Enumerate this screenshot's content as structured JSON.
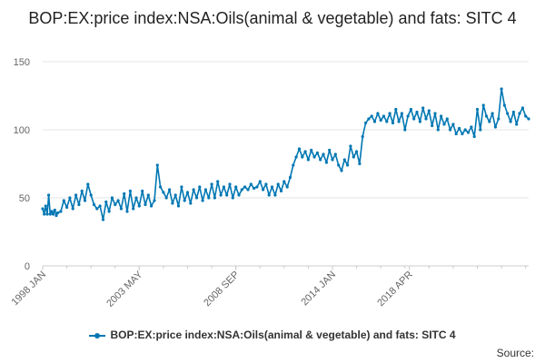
{
  "chart_data": {
    "type": "line",
    "title": "BOP:EX:price index:NSA:Oils(animal & vegetable) and fats: SITC 4",
    "xlabel": "",
    "ylabel": "",
    "ylim": [
      0,
      150
    ],
    "yticks": [
      0,
      50,
      100,
      150
    ],
    "xticks": [
      {
        "label": "1998 JAN",
        "index": 0
      },
      {
        "label": "2003 MAY",
        "index": 64
      },
      {
        "label": "2008 SEP",
        "index": 128
      },
      {
        "label": "2014 JAN",
        "index": 192
      },
      {
        "label": "2018 APR",
        "index": 243
      }
    ],
    "grid": true,
    "legend_position": "bottom",
    "color": "#0077b3",
    "series": [
      {
        "name": "BOP:EX:price index:NSA:Oils(animal & vegetable) and fats: SITC 4",
        "anchors": [
          [
            0,
            42
          ],
          [
            1,
            38
          ],
          [
            2,
            44
          ],
          [
            3,
            38
          ],
          [
            4,
            52
          ],
          [
            5,
            38
          ],
          [
            6,
            40
          ],
          [
            7,
            38
          ],
          [
            8,
            41
          ],
          [
            9,
            37
          ],
          [
            10,
            39
          ],
          [
            12,
            40
          ],
          [
            14,
            48
          ],
          [
            16,
            43
          ],
          [
            18,
            50
          ],
          [
            20,
            42
          ],
          [
            22,
            52
          ],
          [
            24,
            45
          ],
          [
            26,
            55
          ],
          [
            28,
            48
          ],
          [
            30,
            60
          ],
          [
            32,
            52
          ],
          [
            34,
            45
          ],
          [
            36,
            42
          ],
          [
            38,
            44
          ],
          [
            40,
            34
          ],
          [
            42,
            47
          ],
          [
            44,
            40
          ],
          [
            46,
            50
          ],
          [
            48,
            45
          ],
          [
            50,
            48
          ],
          [
            52,
            42
          ],
          [
            54,
            53
          ],
          [
            56,
            40
          ],
          [
            58,
            55
          ],
          [
            60,
            42
          ],
          [
            62,
            50
          ],
          [
            64,
            44
          ],
          [
            66,
            55
          ],
          [
            68,
            45
          ],
          [
            70,
            52
          ],
          [
            72,
            44
          ],
          [
            74,
            48
          ],
          [
            76,
            74
          ],
          [
            78,
            58
          ],
          [
            80,
            54
          ],
          [
            82,
            50
          ],
          [
            84,
            56
          ],
          [
            86,
            46
          ],
          [
            88,
            52
          ],
          [
            90,
            44
          ],
          [
            92,
            58
          ],
          [
            94,
            48
          ],
          [
            96,
            54
          ],
          [
            98,
            46
          ],
          [
            100,
            56
          ],
          [
            102,
            50
          ],
          [
            104,
            58
          ],
          [
            106,
            48
          ],
          [
            108,
            56
          ],
          [
            110,
            50
          ],
          [
            112,
            60
          ],
          [
            114,
            50
          ],
          [
            116,
            62
          ],
          [
            118,
            52
          ],
          [
            120,
            58
          ],
          [
            122,
            52
          ],
          [
            124,
            60
          ],
          [
            126,
            50
          ],
          [
            128,
            58
          ],
          [
            130,
            52
          ],
          [
            132,
            56
          ],
          [
            134,
            58
          ],
          [
            136,
            56
          ],
          [
            138,
            60
          ],
          [
            140,
            57
          ],
          [
            142,
            58
          ],
          [
            144,
            62
          ],
          [
            146,
            56
          ],
          [
            148,
            60
          ],
          [
            150,
            52
          ],
          [
            152,
            58
          ],
          [
            154,
            52
          ],
          [
            156,
            60
          ],
          [
            158,
            55
          ],
          [
            160,
            62
          ],
          [
            162,
            58
          ],
          [
            164,
            65
          ],
          [
            166,
            74
          ],
          [
            168,
            80
          ],
          [
            170,
            86
          ],
          [
            172,
            80
          ],
          [
            174,
            84
          ],
          [
            176,
            78
          ],
          [
            178,
            85
          ],
          [
            180,
            80
          ],
          [
            182,
            83
          ],
          [
            184,
            78
          ],
          [
            186,
            82
          ],
          [
            188,
            76
          ],
          [
            190,
            85
          ],
          [
            192,
            78
          ],
          [
            194,
            82
          ],
          [
            196,
            74
          ],
          [
            198,
            70
          ],
          [
            200,
            78
          ],
          [
            202,
            74
          ],
          [
            204,
            88
          ],
          [
            206,
            80
          ],
          [
            208,
            84
          ],
          [
            210,
            75
          ],
          [
            212,
            95
          ],
          [
            214,
            105
          ],
          [
            216,
            108
          ],
          [
            218,
            110
          ],
          [
            220,
            106
          ],
          [
            222,
            112
          ],
          [
            224,
            107
          ],
          [
            226,
            110
          ],
          [
            228,
            106
          ],
          [
            230,
            112
          ],
          [
            232,
            105
          ],
          [
            234,
            115
          ],
          [
            236,
            106
          ],
          [
            238,
            112
          ],
          [
            240,
            100
          ],
          [
            242,
            110
          ],
          [
            244,
            115
          ],
          [
            246,
            108
          ],
          [
            248,
            113
          ],
          [
            250,
            106
          ],
          [
            252,
            116
          ],
          [
            254,
            108
          ],
          [
            256,
            114
          ],
          [
            258,
            103
          ],
          [
            260,
            112
          ],
          [
            262,
            100
          ],
          [
            264,
            110
          ],
          [
            266,
            104
          ],
          [
            268,
            108
          ],
          [
            270,
            100
          ],
          [
            272,
            104
          ],
          [
            274,
            97
          ],
          [
            276,
            101
          ],
          [
            278,
            97
          ],
          [
            280,
            100
          ],
          [
            282,
            98
          ],
          [
            284,
            102
          ],
          [
            286,
            95
          ],
          [
            288,
            115
          ],
          [
            290,
            100
          ],
          [
            292,
            118
          ],
          [
            294,
            110
          ],
          [
            296,
            106
          ],
          [
            298,
            112
          ],
          [
            300,
            102
          ],
          [
            302,
            108
          ],
          [
            304,
            130
          ],
          [
            306,
            118
          ],
          [
            308,
            112
          ],
          [
            310,
            106
          ],
          [
            312,
            113
          ],
          [
            314,
            104
          ],
          [
            316,
            112
          ],
          [
            318,
            116
          ],
          [
            320,
            110
          ],
          [
            322,
            108
          ]
        ]
      }
    ]
  },
  "legend": {
    "label": "BOP:EX:price index:NSA:Oils(animal & vegetable) and fats: SITC 4"
  },
  "source": {
    "label": "Source:"
  }
}
